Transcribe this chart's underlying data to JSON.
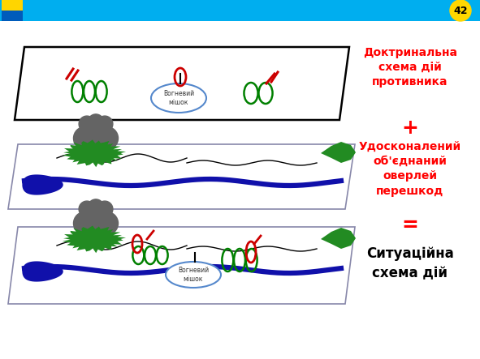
{
  "title_slide_number": "42",
  "header_color": "#00AEEF",
  "ukraine_flag_blue": "#005BBB",
  "ukraine_flag_yellow": "#FFD500",
  "slide_num_color": "#FFD700",
  "background_color": "#FFFFFF",
  "label1": "Доктринальна\nсхема дій\nпротивника",
  "label_plus": "+",
  "label2": "Удосконалений\nоб'єднаний\nоверлей\nперешкод",
  "label_equals": "=",
  "label3": "Ситуаційна\nсхема дій",
  "label_color": "#FF0000",
  "label3_color": "#000000",
  "panel1_label": "Вогневий\nмішок",
  "panel3_label": "Вогневий\nмішок",
  "green_color": "#008000",
  "red_color": "#CC0000",
  "blue_color": "#1010AA",
  "gray_color": "#606060",
  "green_blob": "#228B22",
  "panel1_edge": "#000000",
  "panel23_edge": "#8888AA"
}
